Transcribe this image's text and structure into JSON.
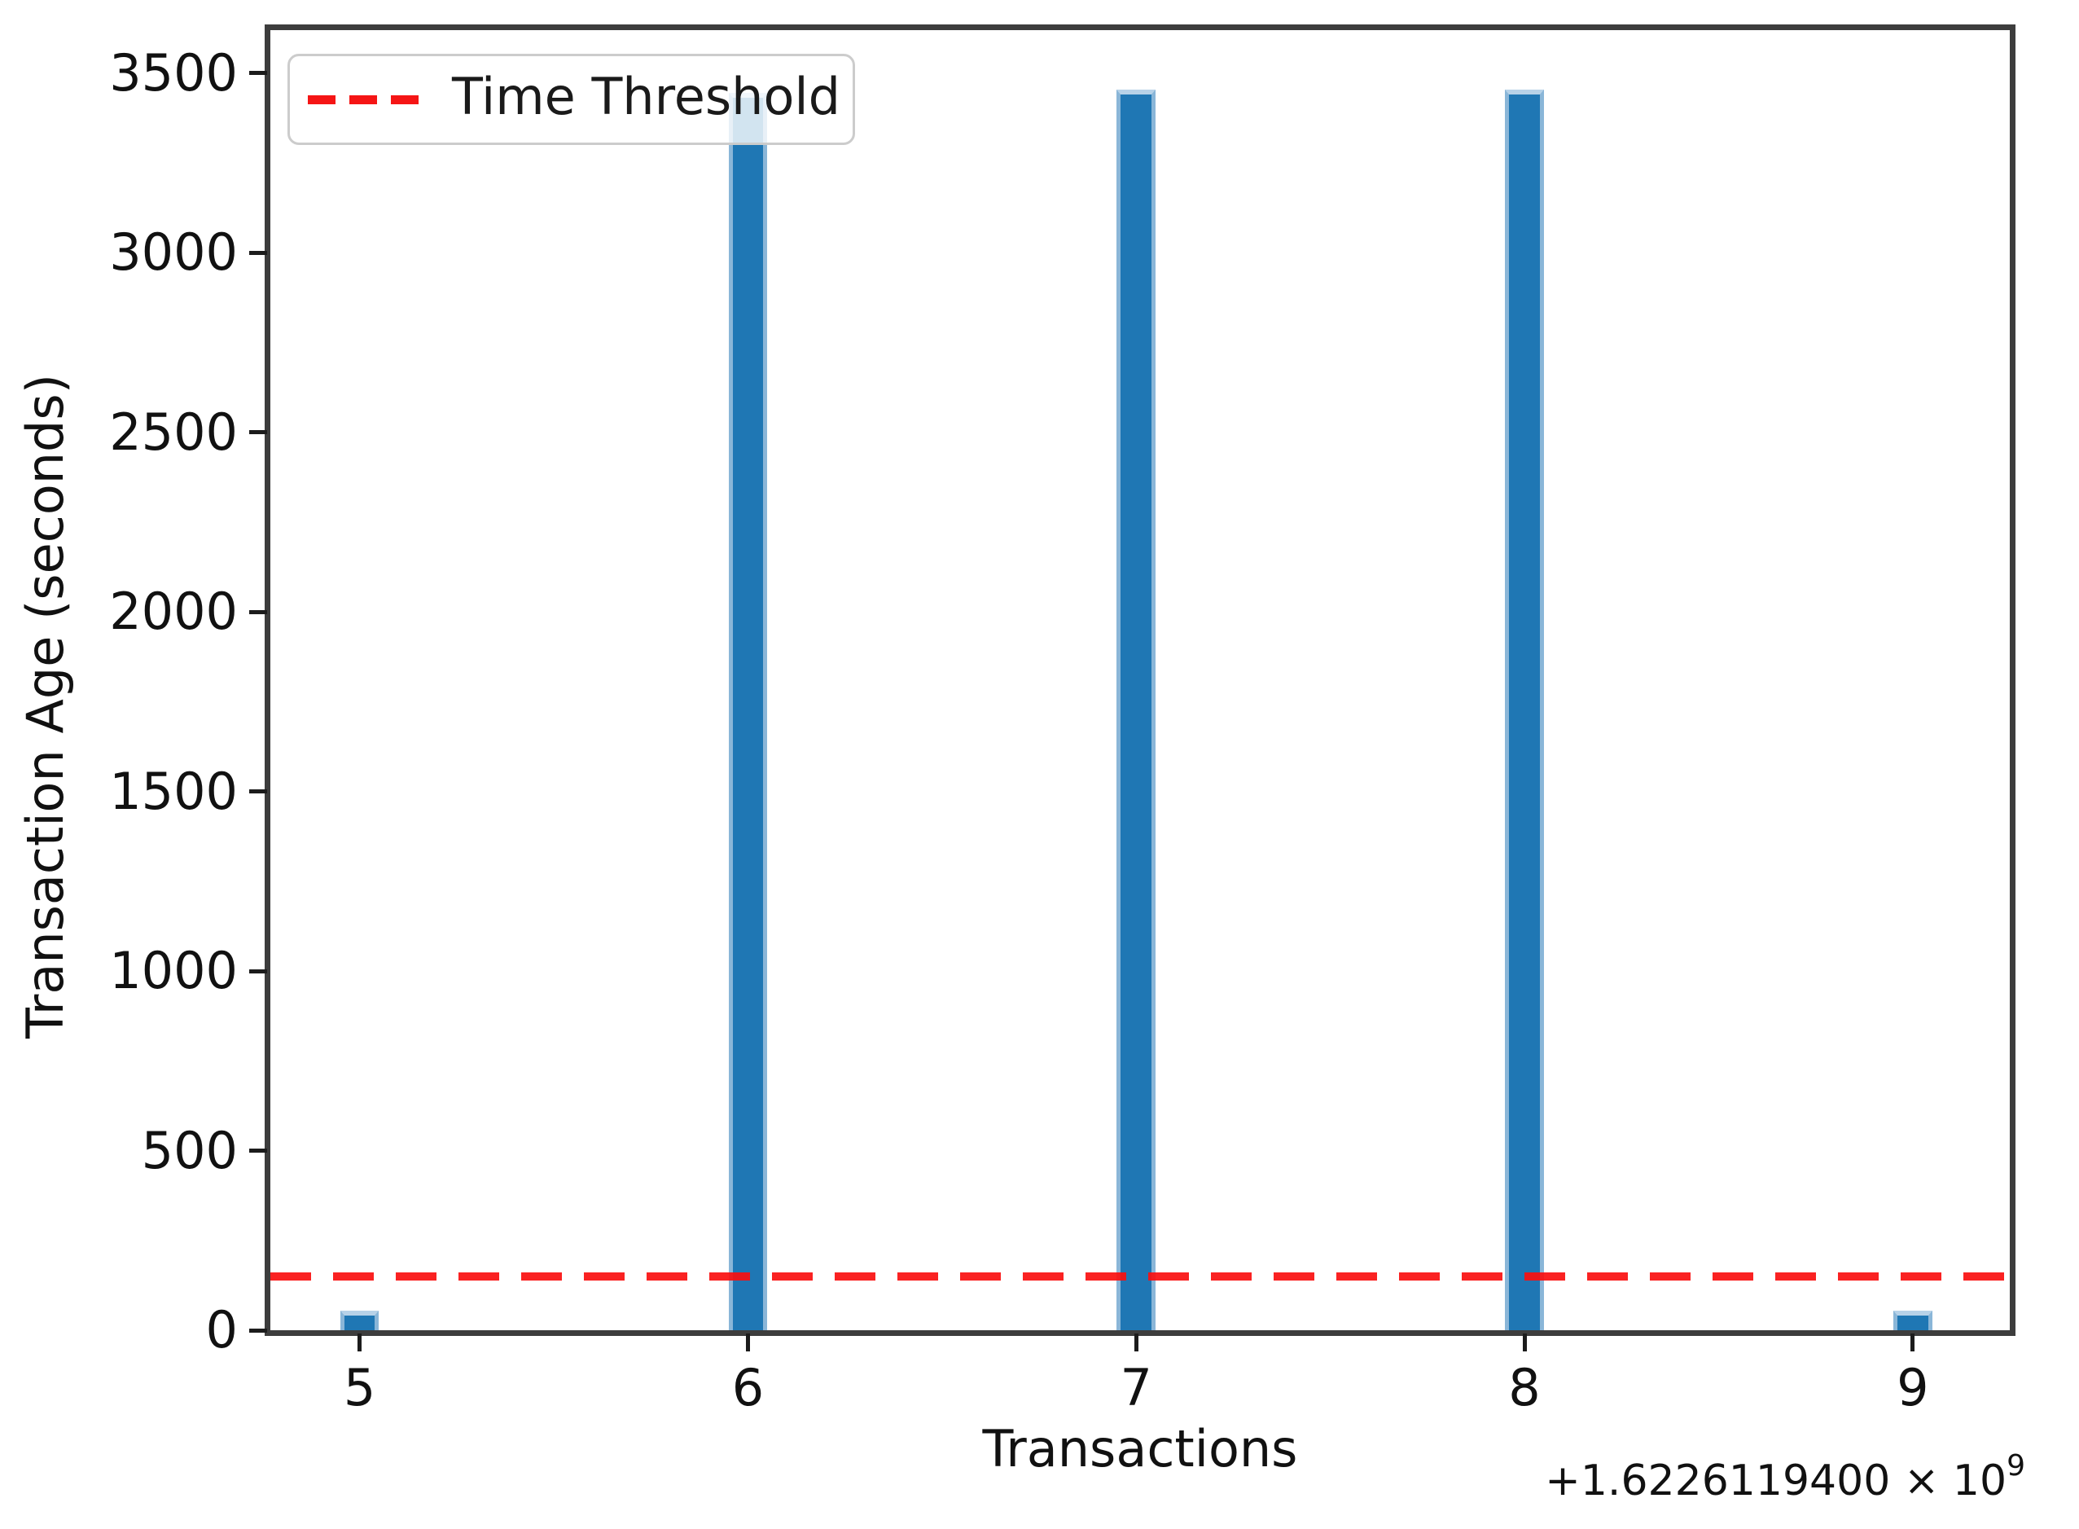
{
  "chart_data": {
    "type": "bar",
    "title": "",
    "xlabel": "Transactions",
    "ylabel": "Transaction Age (seconds)",
    "categories": [
      "5",
      "6",
      "7",
      "8",
      "9"
    ],
    "x_tick_values": [
      5,
      6,
      7,
      8,
      9
    ],
    "values": [
      55,
      3445,
      3455,
      3455,
      55
    ],
    "bar_color": "#1f77b4",
    "bar_width_data_units": 0.1,
    "x_offset": {
      "prefix": "+1.6226119400 × 10",
      "exponent": "9"
    },
    "ytick_labels": [
      "0",
      "500",
      "1000",
      "1500",
      "2000",
      "2500",
      "3000",
      "3500"
    ],
    "ytick_values": [
      0,
      500,
      1000,
      1500,
      2000,
      2500,
      3000,
      3500
    ],
    "xlim": [
      4.77,
      9.25
    ],
    "ylim": [
      0,
      3620
    ],
    "grid": false,
    "threshold": {
      "label": "Time Threshold",
      "value": 150,
      "color": "#f51515",
      "linestyle": "dashed"
    },
    "legend": {
      "position": "upper-left",
      "entries": [
        {
          "label": "Time Threshold",
          "color": "#f51515",
          "linestyle": "dashed"
        }
      ]
    }
  }
}
